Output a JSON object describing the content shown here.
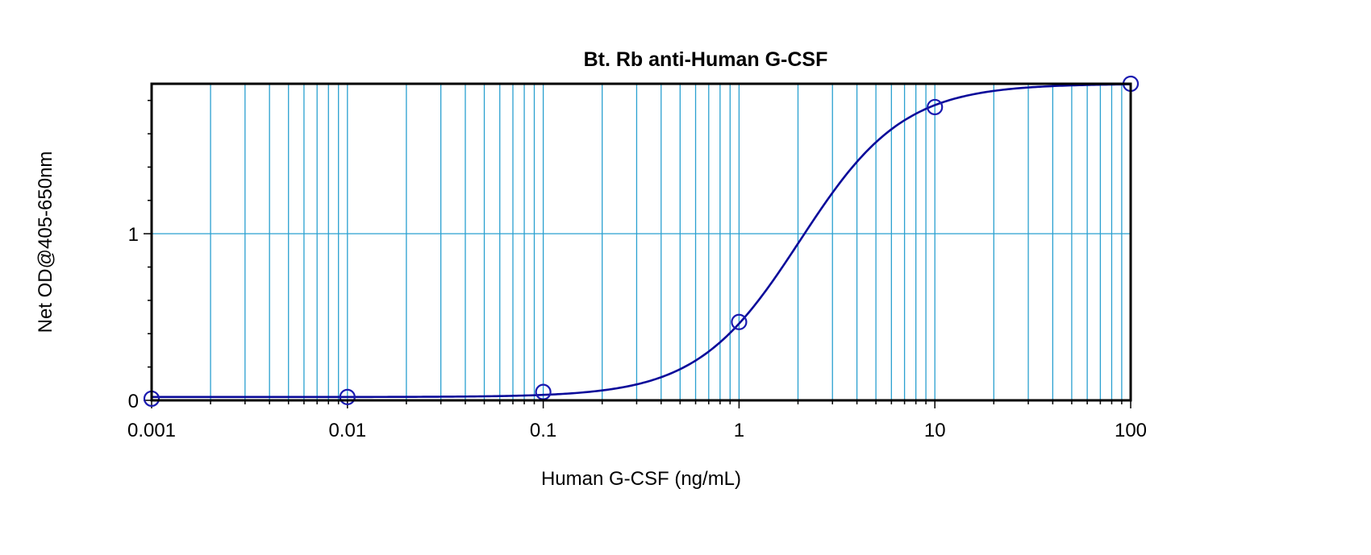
{
  "chart_data": {
    "type": "scatter",
    "title": "Bt. Rb anti-Human G-CSF",
    "xlabel": "Human G-CSF (ng/mL)",
    "ylabel": "Net OD@405-650nm",
    "xscale": "log",
    "xlim": [
      0.001,
      100
    ],
    "ylim": [
      0,
      1.9
    ],
    "x_ticks": [
      "0.001",
      "0.01",
      "0.1",
      "1",
      "10",
      "100"
    ],
    "y_ticks": [
      "0",
      "1"
    ],
    "grid": true,
    "series": [
      {
        "points": [
          {
            "x": 0.001,
            "y": 0.01
          },
          {
            "x": 0.01,
            "y": 0.02
          },
          {
            "x": 0.1,
            "y": 0.05
          },
          {
            "x": 1,
            "y": 0.47
          },
          {
            "x": 10,
            "y": 1.76
          },
          {
            "x": 100,
            "y": 1.9
          }
        ]
      }
    ],
    "fit": {
      "type": "4PL",
      "bottom": 0.02,
      "top": 1.9,
      "ec50": 2.05,
      "hill": 1.65
    },
    "colors": {
      "curve": "#0a0a9a",
      "markers": "#1a1ab0",
      "grid": "#2aa0d0",
      "frame": "#000000"
    }
  }
}
